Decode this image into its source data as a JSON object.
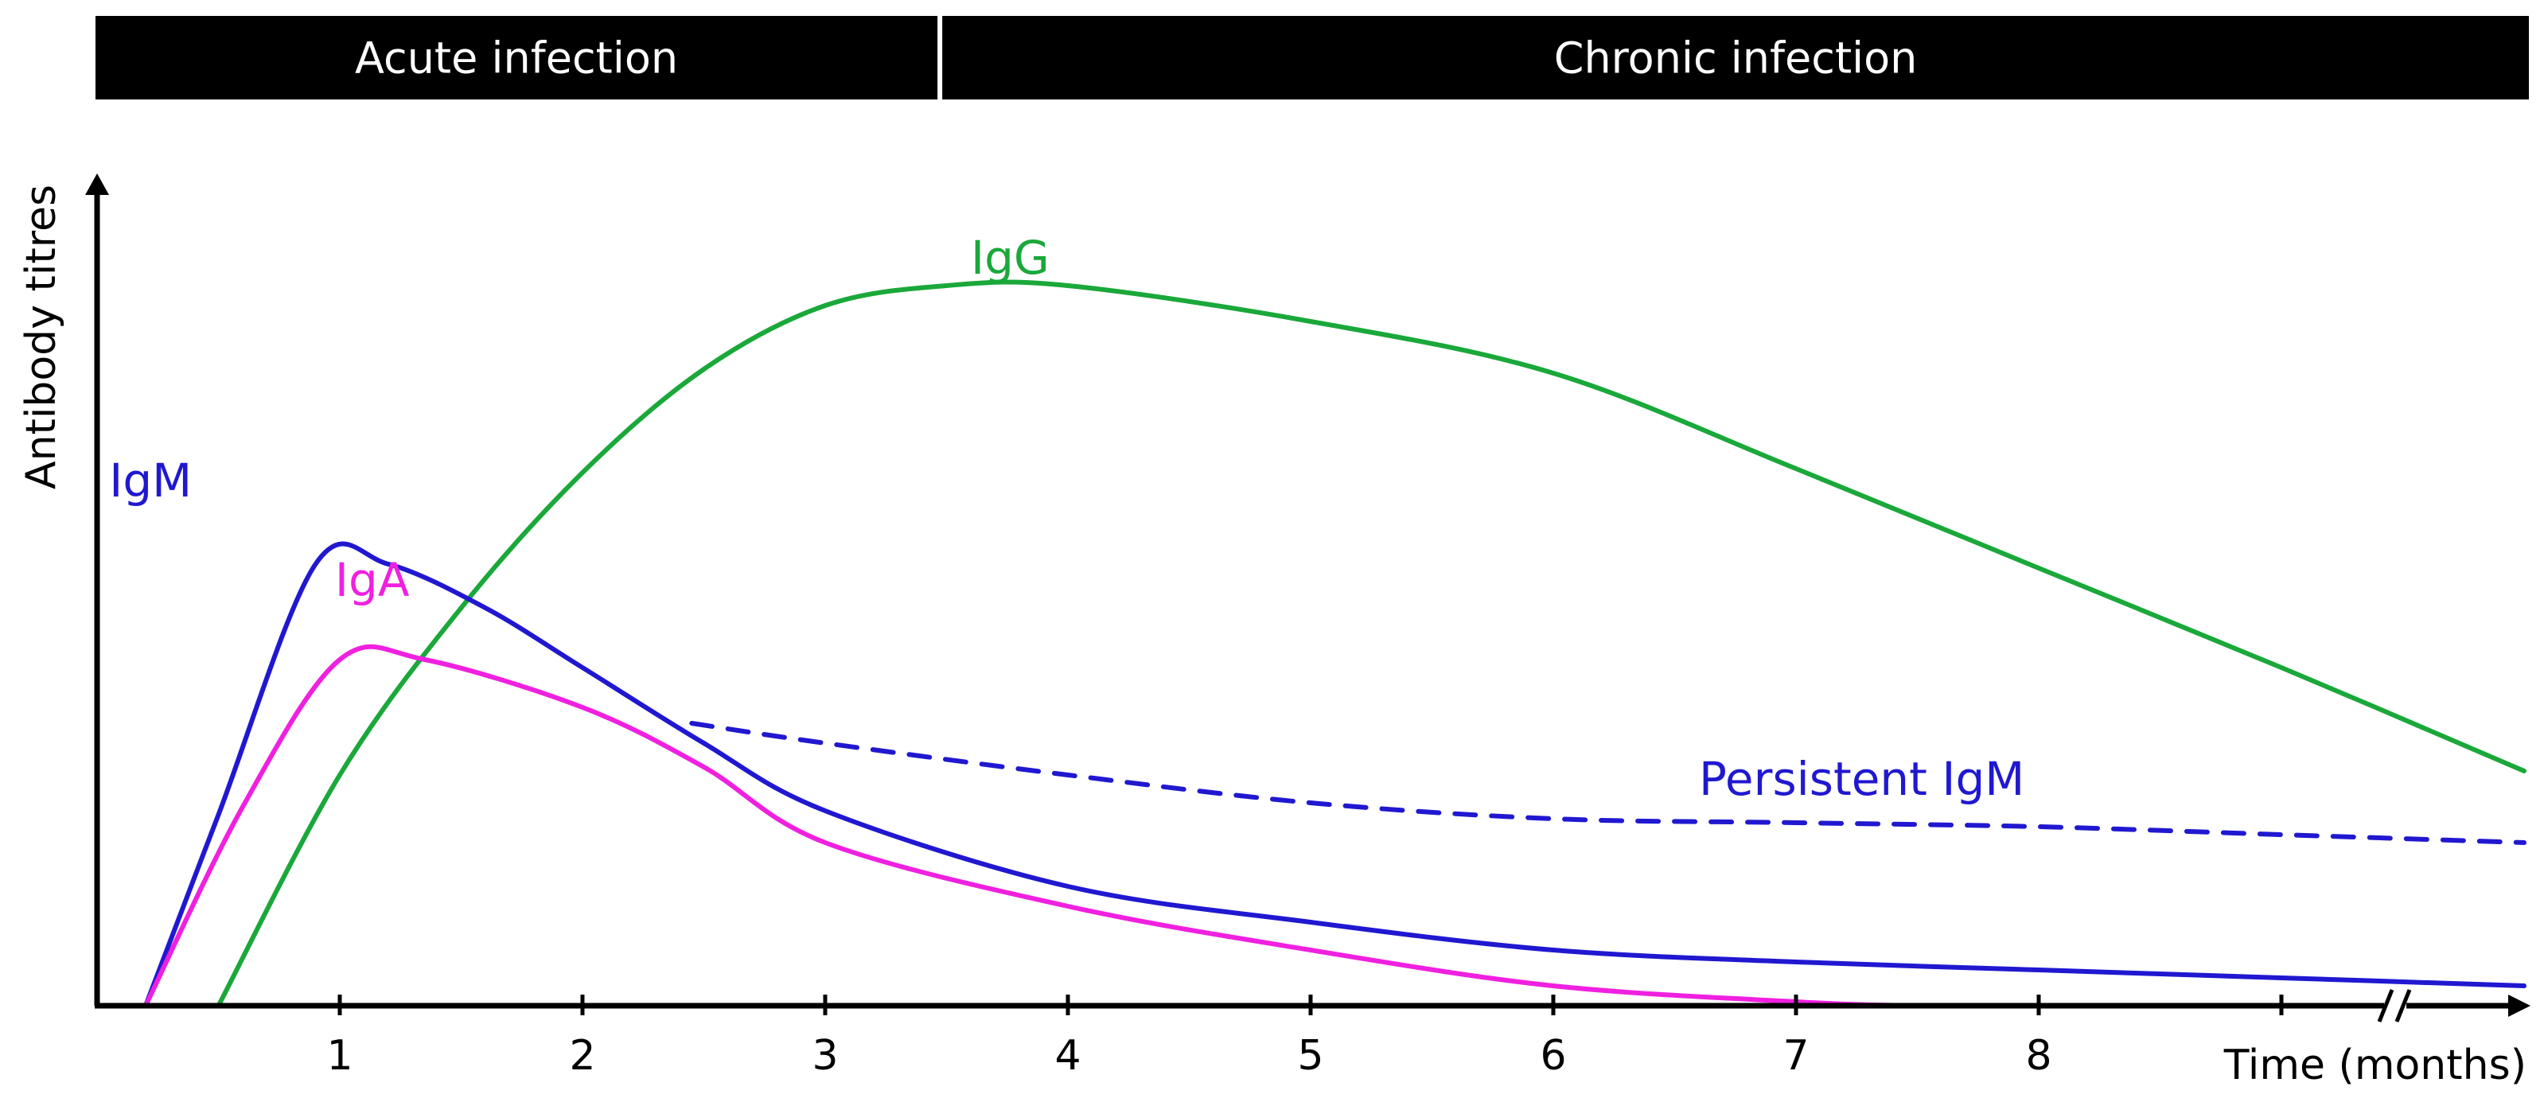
{
  "chart_data": {
    "type": "line",
    "title": "",
    "xlabel": "Time (months)",
    "ylabel": "Antibody titres",
    "xlim": [
      0,
      10
    ],
    "ylim": [
      0,
      100
    ],
    "x_ticks": [
      1,
      2,
      3,
      4,
      5,
      6,
      7,
      8,
      9
    ],
    "x_tick_labels": [
      "1",
      "2",
      "3",
      "4",
      "5",
      "6",
      "7",
      "8",
      ""
    ],
    "axis_break_near": 9.5,
    "grid": false,
    "phases": [
      {
        "label": "Acute infection",
        "start": 0,
        "end": 3.47
      },
      {
        "label": "Chronic infection",
        "start": 3.47,
        "end": 10
      }
    ],
    "series": [
      {
        "name": "IgG",
        "label": "IgG",
        "color": "#1aa83a",
        "dashed": false,
        "label_at": [
          3.6,
          92
        ],
        "points": [
          [
            0.5,
            0
          ],
          [
            1.0,
            29
          ],
          [
            1.5,
            50
          ],
          [
            2.0,
            67
          ],
          [
            2.5,
            80
          ],
          [
            3.0,
            88
          ],
          [
            3.5,
            90.5
          ],
          [
            4.0,
            90.5
          ],
          [
            5.0,
            86
          ],
          [
            6.0,
            79.5
          ],
          [
            7.0,
            67.5
          ],
          [
            8.0,
            55
          ],
          [
            9.0,
            42.5
          ],
          [
            10.0,
            29.5
          ]
        ]
      },
      {
        "name": "IgM",
        "label": "IgM",
        "color": "#2018d0",
        "dashed": false,
        "label_at": [
          0.05,
          64
        ],
        "points": [
          [
            0.2,
            0
          ],
          [
            0.5,
            24
          ],
          [
            0.9,
            55.5
          ],
          [
            1.2,
            55.5
          ],
          [
            1.6,
            50
          ],
          [
            2.0,
            42.5
          ],
          [
            2.5,
            33
          ],
          [
            3.0,
            24.5
          ],
          [
            4.0,
            15
          ],
          [
            5.0,
            10.5
          ],
          [
            6.0,
            7
          ],
          [
            7.0,
            5.5
          ],
          [
            8.0,
            4.5
          ],
          [
            9.0,
            3.5
          ],
          [
            10.0,
            2.5
          ]
        ]
      },
      {
        "name": "IgA",
        "label": "IgA",
        "color": "#f020e0",
        "dashed": false,
        "label_at": [
          0.98,
          51.5
        ],
        "points": [
          [
            0.2,
            0
          ],
          [
            0.6,
            25
          ],
          [
            1.0,
            43.5
          ],
          [
            1.35,
            43.5
          ],
          [
            2.0,
            37.5
          ],
          [
            2.5,
            30
          ],
          [
            3.0,
            20.5
          ],
          [
            4.0,
            12.5
          ],
          [
            5.0,
            7
          ],
          [
            6.0,
            2.5
          ],
          [
            7.0,
            0.5
          ],
          [
            7.5,
            0
          ],
          [
            8.0,
            0
          ]
        ]
      },
      {
        "name": "Persistent IgM",
        "label": "Persistent IgM",
        "color": "#2018d0",
        "dashed": true,
        "label_at": [
          6.6,
          26.5
        ],
        "points": [
          [
            2.45,
            35.5
          ],
          [
            3.0,
            33
          ],
          [
            4.0,
            29
          ],
          [
            5.0,
            25.5
          ],
          [
            6.0,
            23.5
          ],
          [
            7.0,
            23
          ],
          [
            8.0,
            22.5
          ],
          [
            9.0,
            21.5
          ],
          [
            10.0,
            20.5
          ]
        ]
      }
    ]
  }
}
